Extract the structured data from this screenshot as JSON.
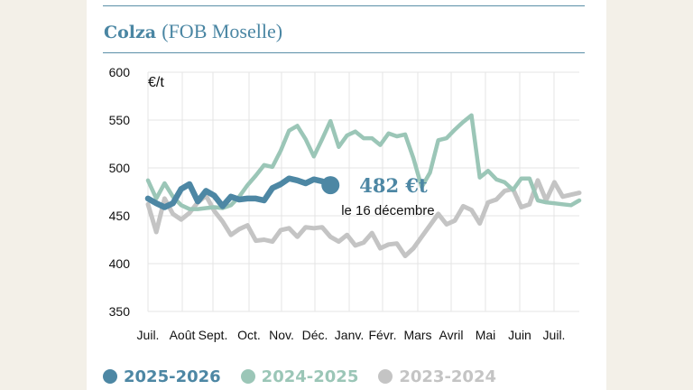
{
  "title": {
    "main": "Colza",
    "sub": "(FOB Moselle)"
  },
  "colors": {
    "current": "#4d87a4",
    "previous": "#9bc6b7",
    "older": "#c4c4c4",
    "axis_text": "#111111",
    "grid": "#e4e4e4",
    "annotation": "#4d87a4"
  },
  "chart_data": {
    "type": "line",
    "title": "Colza (FOB Moselle)",
    "ylabel": "€/t",
    "ylim": [
      350,
      600
    ],
    "yticks": [
      350,
      400,
      450,
      500,
      550,
      600
    ],
    "xlabels": [
      "Juil.",
      "Août",
      "Sept.",
      "Oct.",
      "Nov.",
      "Déc.",
      "Janv.",
      "Févr.",
      "Mars",
      "Avril",
      "Mai",
      "Juin",
      "Juil."
    ],
    "x_range": [
      0,
      52
    ],
    "series": [
      {
        "name": "2023-2024",
        "color": "#c4c4c4",
        "x": [
          0,
          1,
          2,
          3,
          4,
          5,
          6,
          7,
          8,
          9,
          10,
          11,
          12,
          13,
          14,
          15,
          16,
          17,
          18,
          19,
          20,
          21,
          22,
          23,
          24,
          25,
          26,
          27,
          28,
          29,
          30,
          31,
          32,
          33,
          34,
          35,
          36,
          37,
          38,
          39,
          40,
          41,
          42,
          43,
          44,
          45,
          46,
          47,
          48,
          49,
          50,
          51,
          52
        ],
        "values": [
          462,
          433,
          468,
          452,
          446,
          453,
          464,
          471,
          455,
          444,
          430,
          436,
          440,
          424,
          425,
          423,
          435,
          437,
          428,
          438,
          437,
          438,
          428,
          423,
          430,
          419,
          422,
          432,
          416,
          420,
          421,
          408,
          416,
          428,
          440,
          452,
          441,
          445,
          460,
          456,
          442,
          464,
          467,
          476,
          478,
          459,
          462,
          487,
          466,
          485,
          470,
          472,
          474
        ]
      },
      {
        "name": "2024-2025",
        "color": "#9bc6b7",
        "x": [
          0,
          1,
          2,
          3,
          4,
          5,
          6,
          7,
          8,
          9,
          10,
          11,
          12,
          13,
          14,
          15,
          16,
          17,
          18,
          19,
          20,
          21,
          22,
          23,
          24,
          25,
          26,
          27,
          28,
          29,
          30,
          31,
          32,
          33,
          34,
          35,
          36,
          37,
          38,
          39,
          40,
          41,
          42,
          43,
          44,
          45,
          46,
          47,
          48,
          49,
          50,
          51,
          52
        ],
        "values": [
          487,
          468,
          484,
          470,
          461,
          457,
          457,
          458,
          459,
          458,
          461,
          470,
          482,
          492,
          503,
          501,
          518,
          539,
          544,
          530,
          512,
          530,
          549,
          522,
          534,
          538,
          531,
          531,
          524,
          536,
          533,
          535,
          510,
          480,
          495,
          529,
          531,
          540,
          548,
          555,
          490,
          497,
          488,
          485,
          477,
          489,
          489,
          466,
          464,
          463,
          462,
          461,
          466
        ]
      },
      {
        "name": "2025-2026",
        "color": "#4d87a4",
        "x": [
          0,
          1,
          2,
          3,
          4,
          5,
          6,
          7,
          8,
          9,
          10,
          11,
          12,
          13,
          14,
          15,
          16,
          17,
          18,
          19,
          20,
          21,
          22
        ],
        "values": [
          468,
          463,
          459,
          463,
          478,
          483,
          465,
          476,
          471,
          460,
          470,
          467,
          468,
          468,
          466,
          479,
          483,
          489,
          487,
          484,
          488,
          486,
          482
        ]
      }
    ],
    "annotation": {
      "value_label": "482 €t",
      "date_label": "le 16 décembre",
      "series": "2025-2026",
      "x": 22,
      "y": 482
    },
    "legend": [
      "2025-2026",
      "2024-2025",
      "2023-2024"
    ]
  }
}
